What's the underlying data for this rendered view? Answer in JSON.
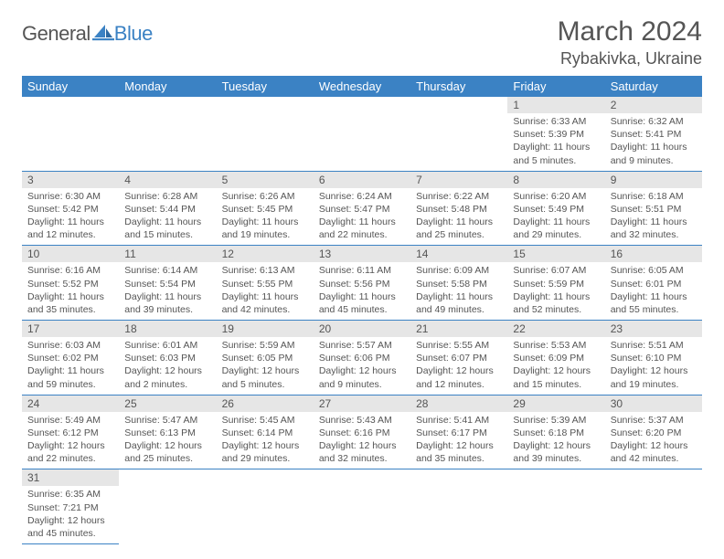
{
  "logo": {
    "text1": "General",
    "text2": "Blue",
    "shape_color": "#3b82c4"
  },
  "title": "March 2024",
  "location": "Rybakivka, Ukraine",
  "colors": {
    "header_bg": "#3b82c4",
    "header_text": "#ffffff",
    "daynum_bg": "#e6e6e6",
    "border": "#3b82c4",
    "text": "#555555",
    "page_bg": "#ffffff"
  },
  "typography": {
    "title_fontsize": 30,
    "location_fontsize": 18,
    "dayhead_fontsize": 13,
    "body_fontsize": 10.5
  },
  "day_names": [
    "Sunday",
    "Monday",
    "Tuesday",
    "Wednesday",
    "Thursday",
    "Friday",
    "Saturday"
  ],
  "weeks": [
    [
      null,
      null,
      null,
      null,
      null,
      {
        "n": "1",
        "sunrise": "Sunrise: 6:33 AM",
        "sunset": "Sunset: 5:39 PM",
        "day1": "Daylight: 11 hours",
        "day2": "and 5 minutes."
      },
      {
        "n": "2",
        "sunrise": "Sunrise: 6:32 AM",
        "sunset": "Sunset: 5:41 PM",
        "day1": "Daylight: 11 hours",
        "day2": "and 9 minutes."
      }
    ],
    [
      {
        "n": "3",
        "sunrise": "Sunrise: 6:30 AM",
        "sunset": "Sunset: 5:42 PM",
        "day1": "Daylight: 11 hours",
        "day2": "and 12 minutes."
      },
      {
        "n": "4",
        "sunrise": "Sunrise: 6:28 AM",
        "sunset": "Sunset: 5:44 PM",
        "day1": "Daylight: 11 hours",
        "day2": "and 15 minutes."
      },
      {
        "n": "5",
        "sunrise": "Sunrise: 6:26 AM",
        "sunset": "Sunset: 5:45 PM",
        "day1": "Daylight: 11 hours",
        "day2": "and 19 minutes."
      },
      {
        "n": "6",
        "sunrise": "Sunrise: 6:24 AM",
        "sunset": "Sunset: 5:47 PM",
        "day1": "Daylight: 11 hours",
        "day2": "and 22 minutes."
      },
      {
        "n": "7",
        "sunrise": "Sunrise: 6:22 AM",
        "sunset": "Sunset: 5:48 PM",
        "day1": "Daylight: 11 hours",
        "day2": "and 25 minutes."
      },
      {
        "n": "8",
        "sunrise": "Sunrise: 6:20 AM",
        "sunset": "Sunset: 5:49 PM",
        "day1": "Daylight: 11 hours",
        "day2": "and 29 minutes."
      },
      {
        "n": "9",
        "sunrise": "Sunrise: 6:18 AM",
        "sunset": "Sunset: 5:51 PM",
        "day1": "Daylight: 11 hours",
        "day2": "and 32 minutes."
      }
    ],
    [
      {
        "n": "10",
        "sunrise": "Sunrise: 6:16 AM",
        "sunset": "Sunset: 5:52 PM",
        "day1": "Daylight: 11 hours",
        "day2": "and 35 minutes."
      },
      {
        "n": "11",
        "sunrise": "Sunrise: 6:14 AM",
        "sunset": "Sunset: 5:54 PM",
        "day1": "Daylight: 11 hours",
        "day2": "and 39 minutes."
      },
      {
        "n": "12",
        "sunrise": "Sunrise: 6:13 AM",
        "sunset": "Sunset: 5:55 PM",
        "day1": "Daylight: 11 hours",
        "day2": "and 42 minutes."
      },
      {
        "n": "13",
        "sunrise": "Sunrise: 6:11 AM",
        "sunset": "Sunset: 5:56 PM",
        "day1": "Daylight: 11 hours",
        "day2": "and 45 minutes."
      },
      {
        "n": "14",
        "sunrise": "Sunrise: 6:09 AM",
        "sunset": "Sunset: 5:58 PM",
        "day1": "Daylight: 11 hours",
        "day2": "and 49 minutes."
      },
      {
        "n": "15",
        "sunrise": "Sunrise: 6:07 AM",
        "sunset": "Sunset: 5:59 PM",
        "day1": "Daylight: 11 hours",
        "day2": "and 52 minutes."
      },
      {
        "n": "16",
        "sunrise": "Sunrise: 6:05 AM",
        "sunset": "Sunset: 6:01 PM",
        "day1": "Daylight: 11 hours",
        "day2": "and 55 minutes."
      }
    ],
    [
      {
        "n": "17",
        "sunrise": "Sunrise: 6:03 AM",
        "sunset": "Sunset: 6:02 PM",
        "day1": "Daylight: 11 hours",
        "day2": "and 59 minutes."
      },
      {
        "n": "18",
        "sunrise": "Sunrise: 6:01 AM",
        "sunset": "Sunset: 6:03 PM",
        "day1": "Daylight: 12 hours",
        "day2": "and 2 minutes."
      },
      {
        "n": "19",
        "sunrise": "Sunrise: 5:59 AM",
        "sunset": "Sunset: 6:05 PM",
        "day1": "Daylight: 12 hours",
        "day2": "and 5 minutes."
      },
      {
        "n": "20",
        "sunrise": "Sunrise: 5:57 AM",
        "sunset": "Sunset: 6:06 PM",
        "day1": "Daylight: 12 hours",
        "day2": "and 9 minutes."
      },
      {
        "n": "21",
        "sunrise": "Sunrise: 5:55 AM",
        "sunset": "Sunset: 6:07 PM",
        "day1": "Daylight: 12 hours",
        "day2": "and 12 minutes."
      },
      {
        "n": "22",
        "sunrise": "Sunrise: 5:53 AM",
        "sunset": "Sunset: 6:09 PM",
        "day1": "Daylight: 12 hours",
        "day2": "and 15 minutes."
      },
      {
        "n": "23",
        "sunrise": "Sunrise: 5:51 AM",
        "sunset": "Sunset: 6:10 PM",
        "day1": "Daylight: 12 hours",
        "day2": "and 19 minutes."
      }
    ],
    [
      {
        "n": "24",
        "sunrise": "Sunrise: 5:49 AM",
        "sunset": "Sunset: 6:12 PM",
        "day1": "Daylight: 12 hours",
        "day2": "and 22 minutes."
      },
      {
        "n": "25",
        "sunrise": "Sunrise: 5:47 AM",
        "sunset": "Sunset: 6:13 PM",
        "day1": "Daylight: 12 hours",
        "day2": "and 25 minutes."
      },
      {
        "n": "26",
        "sunrise": "Sunrise: 5:45 AM",
        "sunset": "Sunset: 6:14 PM",
        "day1": "Daylight: 12 hours",
        "day2": "and 29 minutes."
      },
      {
        "n": "27",
        "sunrise": "Sunrise: 5:43 AM",
        "sunset": "Sunset: 6:16 PM",
        "day1": "Daylight: 12 hours",
        "day2": "and 32 minutes."
      },
      {
        "n": "28",
        "sunrise": "Sunrise: 5:41 AM",
        "sunset": "Sunset: 6:17 PM",
        "day1": "Daylight: 12 hours",
        "day2": "and 35 minutes."
      },
      {
        "n": "29",
        "sunrise": "Sunrise: 5:39 AM",
        "sunset": "Sunset: 6:18 PM",
        "day1": "Daylight: 12 hours",
        "day2": "and 39 minutes."
      },
      {
        "n": "30",
        "sunrise": "Sunrise: 5:37 AM",
        "sunset": "Sunset: 6:20 PM",
        "day1": "Daylight: 12 hours",
        "day2": "and 42 minutes."
      }
    ],
    [
      {
        "n": "31",
        "sunrise": "Sunrise: 6:35 AM",
        "sunset": "Sunset: 7:21 PM",
        "day1": "Daylight: 12 hours",
        "day2": "and 45 minutes."
      },
      null,
      null,
      null,
      null,
      null,
      null
    ]
  ]
}
